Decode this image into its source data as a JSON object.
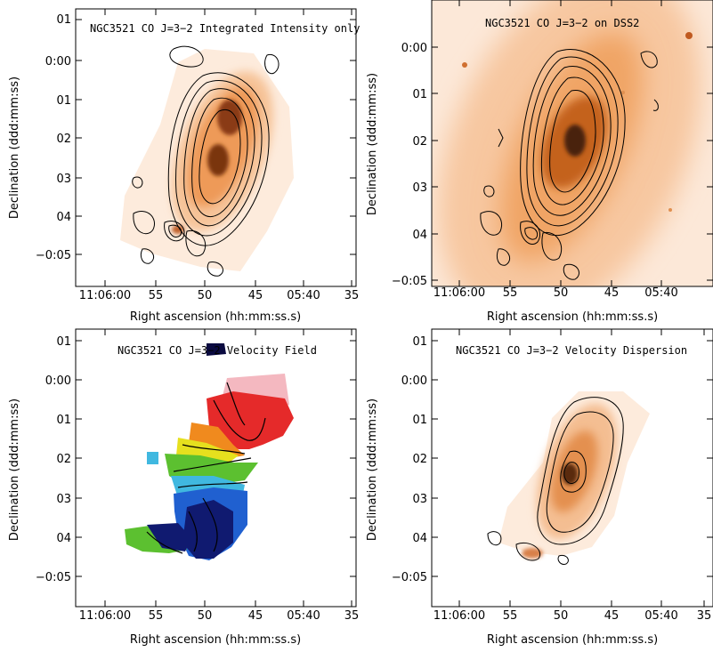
{
  "chart_data": [
    {
      "type": "heatmap",
      "title": "NGC3521 CO J=3−2 Integrated Intensity only",
      "xlabel": "Right ascension (hh:mm:ss.s)",
      "ylabel": "Declination (ddd:mm:ss)",
      "xticks": [
        "11:06:00",
        "55",
        "50",
        "45",
        "05:40",
        "35"
      ],
      "yticks": [
        "01",
        "0:00",
        "01",
        "02",
        "03",
        "04",
        "−0:05"
      ],
      "colormap": "white-orange-black",
      "contours": true
    },
    {
      "type": "heatmap",
      "title": "NGC3521 CO J=3−2 on DSS2",
      "xlabel": "Right ascension (hh:mm:ss.s)",
      "ylabel": "Declination (ddd:mm:ss)",
      "xticks": [
        "11:06:00",
        "55",
        "50",
        "45",
        "05:40"
      ],
      "yticks": [
        "0:00",
        "01",
        "02",
        "03",
        "04",
        "−0:05"
      ],
      "colormap": "white-orange-black",
      "contours": true
    },
    {
      "type": "heatmap",
      "title": "NGC3521 CO J=3−2 Velocity Field",
      "xlabel": "Right ascension (hh:mm:ss.s)",
      "ylabel": "Declination (ddd:mm:ss)",
      "xticks": [
        "11:06:00",
        "55",
        "50",
        "45",
        "05:40",
        "35"
      ],
      "yticks": [
        "01",
        "0:00",
        "01",
        "02",
        "03",
        "04",
        "−0:05"
      ],
      "colormap": "rainbow",
      "contours": true
    },
    {
      "type": "heatmap",
      "title": "NGC3521 CO J=3−2 Velocity Dispersion",
      "xlabel": "Right ascension (hh:mm:ss.s)",
      "ylabel": "Declination (ddd:mm:ss)",
      "xticks": [
        "11:06:00",
        "55",
        "50",
        "45",
        "05:40",
        "35"
      ],
      "yticks": [
        "01",
        "0:00",
        "01",
        "02",
        "03",
        "04",
        "−0:05"
      ],
      "colormap": "white-orange-black",
      "contours": true
    }
  ],
  "colors": {
    "orange_light": "#fbe3cc",
    "orange_mid": "#f0a060",
    "orange_dark": "#b0501a",
    "core_dark": "#3a2010",
    "vel_red": "#e52a2a",
    "vel_pink": "#f4b8c0",
    "vel_orange": "#f08a1e",
    "vel_yellow": "#e6e01e",
    "vel_green": "#5cc030",
    "vel_cyan": "#40b8e0",
    "vel_blue": "#2060d0",
    "vel_navy": "#101a70"
  }
}
